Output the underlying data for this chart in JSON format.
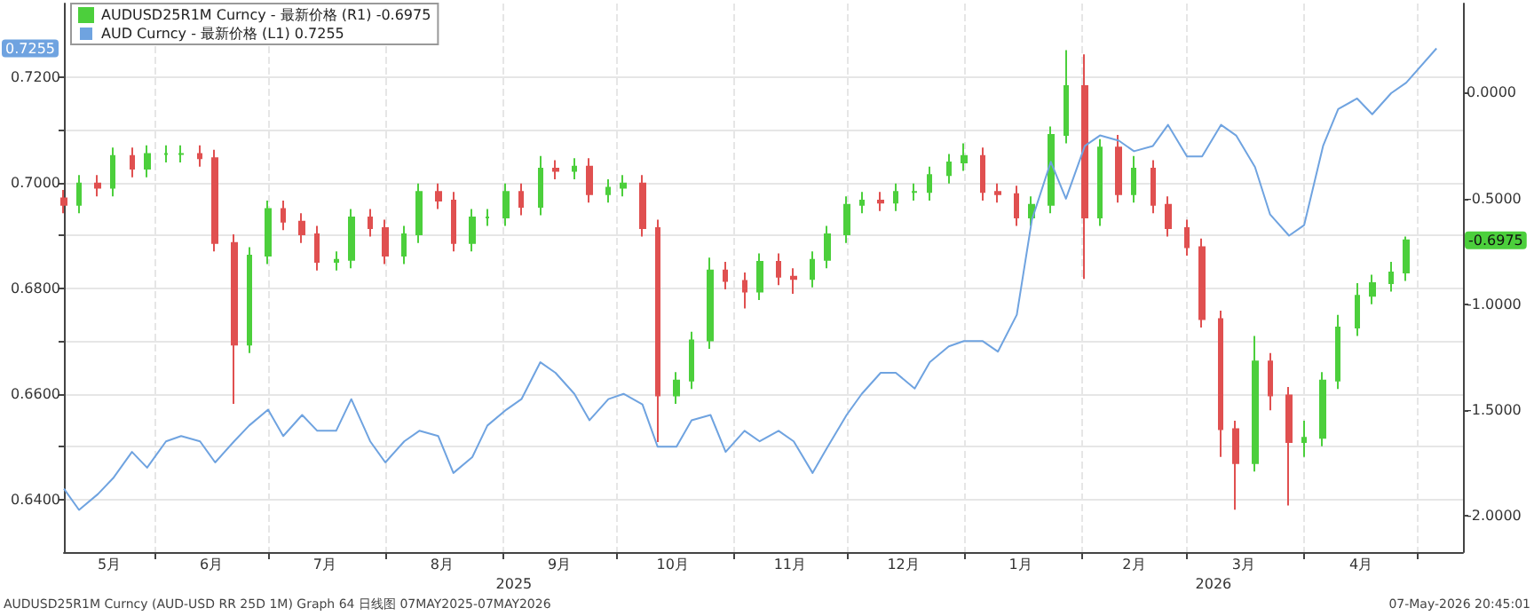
{
  "chart_data": {
    "type": "candlestick",
    "x": [
      "2025-05-08",
      "2025-05-12",
      "2025-05-17",
      "2025-05-21",
      "2025-05-26",
      "2025-05-30",
      "2025-06-04",
      "2025-06-08",
      "2025-06-13",
      "2025-06-17",
      "2025-06-22",
      "2025-06-26",
      "2025-07-01",
      "2025-07-05",
      "2025-07-10",
      "2025-07-14",
      "2025-07-19",
      "2025-07-23",
      "2025-07-28",
      "2025-08-01",
      "2025-08-06",
      "2025-08-10",
      "2025-08-15",
      "2025-08-19",
      "2025-08-24",
      "2025-08-28",
      "2025-09-02",
      "2025-09-06",
      "2025-09-11",
      "2025-09-15",
      "2025-09-20",
      "2025-09-24",
      "2025-09-29",
      "2025-10-03",
      "2025-10-08",
      "2025-10-12",
      "2025-10-17",
      "2025-10-21",
      "2025-10-26",
      "2025-10-30",
      "2025-11-04",
      "2025-11-08",
      "2025-11-13",
      "2025-11-17",
      "2025-11-22",
      "2025-11-26",
      "2025-12-01",
      "2025-12-05",
      "2025-12-10",
      "2025-12-14",
      "2025-12-19",
      "2025-12-23",
      "2025-12-28",
      "2026-01-01",
      "2026-01-06",
      "2026-01-10",
      "2026-01-15",
      "2026-01-19",
      "2026-01-24",
      "2026-01-28",
      "2026-02-02",
      "2026-02-06",
      "2026-02-11",
      "2026-02-15",
      "2026-02-20",
      "2026-02-24",
      "2026-03-01",
      "2026-03-05",
      "2026-03-10",
      "2026-03-14",
      "2026-03-19",
      "2026-03-23",
      "2026-03-28",
      "2026-04-01",
      "2026-04-06",
      "2026-04-10",
      "2026-04-15",
      "2026-04-19",
      "2026-04-24",
      "2026-04-28"
    ],
    "series": [
      {
        "name": "AUDUSD25R1M Curncy - 最新价格 (R1) -0.6975",
        "axis": "y2",
        "color": "#4ccf3c",
        "colors": [
          "#e05050",
          "#4ccf3c",
          "#e05050",
          "#4ccf3c",
          "#e05050",
          "#4ccf3c",
          "#4ccf3c",
          "#4ccf3c",
          "#e05050",
          "#e05050",
          "#e05050",
          "#4ccf3c",
          "#4ccf3c",
          "#e05050",
          "#e05050",
          "#e05050",
          "#4ccf3c",
          "#4ccf3c",
          "#e05050",
          "#e05050",
          "#4ccf3c",
          "#4ccf3c",
          "#e05050",
          "#e05050",
          "#4ccf3c",
          "#4ccf3c",
          "#4ccf3c",
          "#e05050",
          "#4ccf3c",
          "#e05050",
          "#4ccf3c",
          "#e05050",
          "#4ccf3c",
          "#4ccf3c",
          "#e05050",
          "#e05050",
          "#4ccf3c",
          "#4ccf3c",
          "#4ccf3c",
          "#e05050",
          "#e05050",
          "#4ccf3c",
          "#e05050",
          "#e05050",
          "#4ccf3c",
          "#4ccf3c",
          "#4ccf3c",
          "#4ccf3c",
          "#e05050",
          "#4ccf3c",
          "#4ccf3c",
          "#4ccf3c",
          "#4ccf3c",
          "#4ccf3c",
          "#e05050",
          "#e05050",
          "#e05050",
          "#4ccf3c",
          "#4ccf3c",
          "#4ccf3c",
          "#e05050",
          "#4ccf3c",
          "#e05050",
          "#4ccf3c",
          "#e05050",
          "#e05050",
          "#e05050",
          "#e05050",
          "#e05050",
          "#e05050",
          "#4ccf3c",
          "#e05050",
          "#e05050",
          "#4ccf3c",
          "#4ccf3c",
          "#4ccf3c",
          "#4ccf3c",
          "#4ccf3c",
          "#4ccf3c",
          "#4ccf3c"
        ],
        "ohlc": [
          [
            -0.5,
            -0.46,
            -0.57,
            -0.53
          ],
          [
            -0.53,
            -0.39,
            -0.57,
            -0.43
          ],
          [
            -0.43,
            -0.39,
            -0.49,
            -0.45
          ],
          [
            -0.45,
            -0.26,
            -0.49,
            -0.3
          ],
          [
            -0.3,
            -0.26,
            -0.4,
            -0.36
          ],
          [
            -0.36,
            -0.25,
            -0.4,
            -0.29
          ],
          [
            -0.29,
            -0.25,
            -0.33,
            -0.29
          ],
          [
            -0.29,
            -0.25,
            -0.33,
            -0.29
          ],
          [
            -0.29,
            -0.25,
            -0.35,
            -0.31
          ],
          [
            -0.31,
            -0.27,
            -0.75,
            -0.71
          ],
          [
            -0.71,
            -0.67,
            -1.47,
            -1.19
          ],
          [
            -1.19,
            -0.73,
            -1.23,
            -0.77
          ],
          [
            -0.77,
            -0.51,
            -0.81,
            -0.55
          ],
          [
            -0.55,
            -0.51,
            -0.65,
            -0.61
          ],
          [
            -0.61,
            -0.57,
            -0.71,
            -0.67
          ],
          [
            -0.67,
            -0.63,
            -0.84,
            -0.8
          ],
          [
            -0.8,
            -0.75,
            -0.84,
            -0.79
          ],
          [
            -0.79,
            -0.55,
            -0.83,
            -0.59
          ],
          [
            -0.59,
            -0.55,
            -0.68,
            -0.64
          ],
          [
            -0.64,
            -0.6,
            -0.81,
            -0.77
          ],
          [
            -0.77,
            -0.63,
            -0.81,
            -0.67
          ],
          [
            -0.67,
            -0.43,
            -0.71,
            -0.47
          ],
          [
            -0.47,
            -0.43,
            -0.55,
            -0.51
          ],
          [
            -0.51,
            -0.47,
            -0.75,
            -0.71
          ],
          [
            -0.71,
            -0.55,
            -0.75,
            -0.59
          ],
          [
            -0.59,
            -0.55,
            -0.63,
            -0.59
          ],
          [
            -0.59,
            -0.43,
            -0.63,
            -0.47
          ],
          [
            -0.47,
            -0.43,
            -0.58,
            -0.54
          ],
          [
            -0.54,
            -0.3,
            -0.58,
            -0.36
          ],
          [
            -0.36,
            -0.32,
            -0.41,
            -0.37
          ],
          [
            -0.37,
            -0.31,
            -0.41,
            -0.35
          ],
          [
            -0.35,
            -0.31,
            -0.52,
            -0.48
          ],
          [
            -0.48,
            -0.41,
            -0.52,
            -0.45
          ],
          [
            -0.45,
            -0.39,
            -0.49,
            -0.43
          ],
          [
            -0.43,
            -0.39,
            -0.68,
            -0.64
          ],
          [
            -0.64,
            -0.6,
            -1.65,
            -1.43
          ],
          [
            -1.43,
            -1.32,
            -1.47,
            -1.36
          ],
          [
            -1.36,
            -1.13,
            -1.4,
            -1.17
          ],
          [
            -1.17,
            -0.78,
            -1.21,
            -0.84
          ],
          [
            -0.84,
            -0.8,
            -0.93,
            -0.89
          ],
          [
            -0.89,
            -0.85,
            -1.02,
            -0.94
          ],
          [
            -0.94,
            -0.76,
            -0.98,
            -0.8
          ],
          [
            -0.8,
            -0.76,
            -0.91,
            -0.87
          ],
          [
            -0.87,
            -0.83,
            -0.95,
            -0.88
          ],
          [
            -0.88,
            -0.75,
            -0.92,
            -0.79
          ],
          [
            -0.79,
            -0.63,
            -0.83,
            -0.67
          ],
          [
            -0.67,
            -0.49,
            -0.71,
            -0.53
          ],
          [
            -0.53,
            -0.47,
            -0.57,
            -0.51
          ],
          [
            -0.51,
            -0.47,
            -0.56,
            -0.52
          ],
          [
            -0.52,
            -0.43,
            -0.56,
            -0.47
          ],
          [
            -0.47,
            -0.43,
            -0.51,
            -0.47
          ],
          [
            -0.47,
            -0.35,
            -0.51,
            -0.39
          ],
          [
            -0.39,
            -0.29,
            -0.43,
            -0.33
          ],
          [
            -0.33,
            -0.24,
            -0.37,
            -0.3
          ],
          [
            -0.3,
            -0.26,
            -0.51,
            -0.47
          ],
          [
            -0.47,
            -0.43,
            -0.52,
            -0.48
          ],
          [
            -0.48,
            -0.44,
            -0.63,
            -0.59
          ],
          [
            -0.59,
            -0.49,
            -0.63,
            -0.53
          ],
          [
            -0.53,
            -0.16,
            -0.57,
            -0.2
          ],
          [
            -0.2,
            0.2,
            -0.24,
            0.03
          ],
          [
            0.03,
            0.18,
            -0.88,
            -0.59
          ],
          [
            -0.59,
            -0.22,
            -0.63,
            -0.26
          ],
          [
            -0.26,
            -0.2,
            -0.52,
            -0.48
          ],
          [
            -0.48,
            -0.3,
            -0.52,
            -0.36
          ],
          [
            -0.36,
            -0.32,
            -0.57,
            -0.53
          ],
          [
            -0.53,
            -0.49,
            -0.68,
            -0.64
          ],
          [
            -0.64,
            -0.6,
            -0.77,
            -0.73
          ],
          [
            -0.73,
            -0.69,
            -1.11,
            -1.07
          ],
          [
            -1.07,
            -1.03,
            -1.72,
            -1.59
          ],
          [
            -1.59,
            -1.55,
            -1.97,
            -1.75
          ],
          [
            -1.75,
            -1.15,
            -1.79,
            -1.27
          ],
          [
            -1.27,
            -1.23,
            -1.5,
            -1.43
          ],
          [
            -1.43,
            -1.39,
            -1.95,
            -1.65
          ],
          [
            -1.65,
            -1.55,
            -1.72,
            -1.63
          ],
          [
            -1.63,
            -1.32,
            -1.67,
            -1.36
          ],
          [
            -1.36,
            -1.05,
            -1.4,
            -1.11
          ],
          [
            -1.11,
            -0.9,
            -1.15,
            -0.96
          ],
          [
            -0.96,
            -0.86,
            -1.0,
            -0.9
          ],
          [
            -0.9,
            -0.8,
            -0.94,
            -0.85
          ],
          [
            -0.85,
            -0.68,
            -0.89,
            -0.6975
          ]
        ]
      },
      {
        "name": "AUD Curncy - 最新价格 (L1) 0.7255",
        "type": "line",
        "axis": "y",
        "color": "#6fa3e0",
        "x": [
          "2025-05-08",
          "2025-05-12",
          "2025-05-17",
          "2025-05-21",
          "2025-05-26",
          "2025-05-30",
          "2025-06-04",
          "2025-06-08",
          "2025-06-13",
          "2025-06-17",
          "2025-06-22",
          "2025-06-26",
          "2025-07-01",
          "2025-07-05",
          "2025-07-10",
          "2025-07-14",
          "2025-07-19",
          "2025-07-23",
          "2025-07-28",
          "2025-08-01",
          "2025-08-06",
          "2025-08-10",
          "2025-08-15",
          "2025-08-19",
          "2025-08-24",
          "2025-08-28",
          "2025-09-02",
          "2025-09-06",
          "2025-09-11",
          "2025-09-15",
          "2025-09-20",
          "2025-09-24",
          "2025-09-29",
          "2025-10-03",
          "2025-10-08",
          "2025-10-12",
          "2025-10-17",
          "2025-10-21",
          "2025-10-26",
          "2025-10-30",
          "2025-11-04",
          "2025-11-08",
          "2025-11-13",
          "2025-11-17",
          "2025-11-22",
          "2025-11-26",
          "2025-12-01",
          "2025-12-05",
          "2025-12-10",
          "2025-12-14",
          "2025-12-19",
          "2025-12-23",
          "2025-12-28",
          "2026-01-01",
          "2026-01-06",
          "2026-01-10",
          "2026-01-15",
          "2026-01-19",
          "2026-01-24",
          "2026-01-28",
          "2026-02-02",
          "2026-02-06",
          "2026-02-11",
          "2026-02-15",
          "2026-02-20",
          "2026-02-24",
          "2026-03-01",
          "2026-03-05",
          "2026-03-10",
          "2026-03-14",
          "2026-03-19",
          "2026-03-23",
          "2026-03-28",
          "2026-04-01",
          "2026-04-06",
          "2026-04-10",
          "2026-04-15",
          "2026-04-19",
          "2026-04-24",
          "2026-04-28",
          "2026-05-06"
        ],
        "values": [
          0.642,
          0.638,
          0.641,
          0.644,
          0.649,
          0.646,
          0.651,
          0.652,
          0.651,
          0.647,
          0.651,
          0.654,
          0.657,
          0.652,
          0.656,
          0.653,
          0.653,
          0.659,
          0.651,
          0.647,
          0.651,
          0.653,
          0.652,
          0.645,
          0.648,
          0.654,
          0.657,
          0.659,
          0.666,
          0.664,
          0.66,
          0.655,
          0.659,
          0.66,
          0.658,
          0.65,
          0.65,
          0.655,
          0.656,
          0.649,
          0.653,
          0.651,
          0.653,
          0.651,
          0.645,
          0.65,
          0.656,
          0.66,
          0.664,
          0.664,
          0.661,
          0.666,
          0.669,
          0.67,
          0.67,
          0.668,
          0.675,
          0.693,
          0.704,
          0.697,
          0.707,
          0.709,
          0.708,
          0.706,
          0.707,
          0.711,
          0.705,
          0.705,
          0.711,
          0.709,
          0.703,
          0.694,
          0.69,
          0.692,
          0.707,
          0.714,
          0.716,
          0.713,
          0.717,
          0.719,
          0.7255
        ]
      }
    ],
    "xlim": [
      "2025-05-08",
      "2026-05-13"
    ],
    "xticks": [
      {
        "value": "2025-05-20",
        "label": "5月"
      },
      {
        "value": "2025-06-01",
        "label": null
      },
      {
        "value": "2025-06-16",
        "label": "6月"
      },
      {
        "value": "2025-07-01",
        "label": null
      },
      {
        "value": "2025-07-16",
        "label": "7月"
      },
      {
        "value": "2025-08-01",
        "label": null
      },
      {
        "value": "2025-08-16",
        "label": "8月"
      },
      {
        "value": "2025-09-01",
        "label": null
      },
      {
        "value": "2025-09-16",
        "label": "9月"
      },
      {
        "value": "2025-10-01",
        "label": null
      },
      {
        "value": "2025-10-16",
        "label": "10月"
      },
      {
        "value": "2025-11-01",
        "label": null
      },
      {
        "value": "2025-11-16",
        "label": "11月"
      },
      {
        "value": "2025-12-01",
        "label": null
      },
      {
        "value": "2025-12-16",
        "label": "12月"
      },
      {
        "value": "2026-01-01",
        "label": null
      },
      {
        "value": "2026-01-16",
        "label": "1月"
      },
      {
        "value": "2026-02-01",
        "label": null
      },
      {
        "value": "2026-02-15",
        "label": "2月"
      },
      {
        "value": "2026-03-01",
        "label": null
      },
      {
        "value": "2026-03-16",
        "label": "3月"
      },
      {
        "value": "2026-04-01",
        "label": null
      },
      {
        "value": "2026-04-16",
        "label": "4月"
      },
      {
        "value": "2026-05-01",
        "label": null
      }
    ],
    "ylim": [
      0.63,
      0.734
    ],
    "yticks": [
      {
        "value": 0.64,
        "label": "0.6400"
      },
      {
        "value": 0.65,
        "label": null
      },
      {
        "value": 0.66,
        "label": "0.6600"
      },
      {
        "value": 0.67,
        "label": null
      },
      {
        "value": 0.68,
        "label": "0.6800"
      },
      {
        "value": 0.69,
        "label": null
      },
      {
        "value": 0.7,
        "label": "0.7000"
      },
      {
        "value": 0.71,
        "label": null
      },
      {
        "value": 0.72,
        "label": "0.7200"
      }
    ],
    "y2lim": [
      -2.17,
      0.42
    ],
    "y2ticks": [
      {
        "value": -2,
        "label": "-2.0000"
      },
      {
        "value": -1.5,
        "label": "-1.5000"
      },
      {
        "value": -1,
        "label": "-1.0000"
      },
      {
        "value": -0.5,
        "label": "-0.5000"
      },
      {
        "value": 0,
        "label": "0.0000"
      }
    ],
    "annotations": [
      "-0.6975",
      "0.7255",
      "2025",
      "2026",
      "AUDUSD25R1M Curncy (AUD-USD RR 25D 1M) Graph 64 日线图 07MAY2025-07MAY2026",
      "07-May-2026 20:45:01"
    ],
    "grid": true,
    "legend": "top left"
  }
}
